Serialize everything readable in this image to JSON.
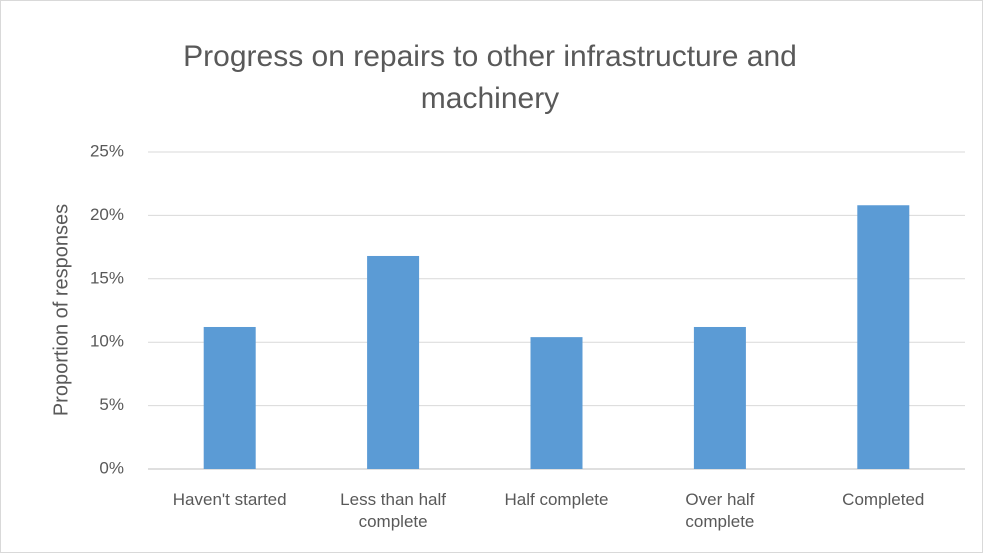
{
  "chart_data": {
    "type": "bar",
    "title": "Progress on repairs to other infrastructure and machinery",
    "y_label": "Proportion of responses",
    "categories": [
      "Haven't started",
      "Less than half complete",
      "Half complete",
      "Over half complete",
      "Completed"
    ],
    "values": [
      11.2,
      16.8,
      10.4,
      11.2,
      20.8
    ],
    "color": "#5b9bd5",
    "ylim": [
      0,
      25
    ],
    "yticks": [
      {
        "value": 0,
        "label": "0%"
      },
      {
        "value": 5,
        "label": "5%"
      },
      {
        "value": 10,
        "label": "10%"
      },
      {
        "value": 15,
        "label": "15%"
      },
      {
        "value": 20,
        "label": "20%"
      },
      {
        "value": 25,
        "label": "25%"
      }
    ],
    "grid": true
  }
}
